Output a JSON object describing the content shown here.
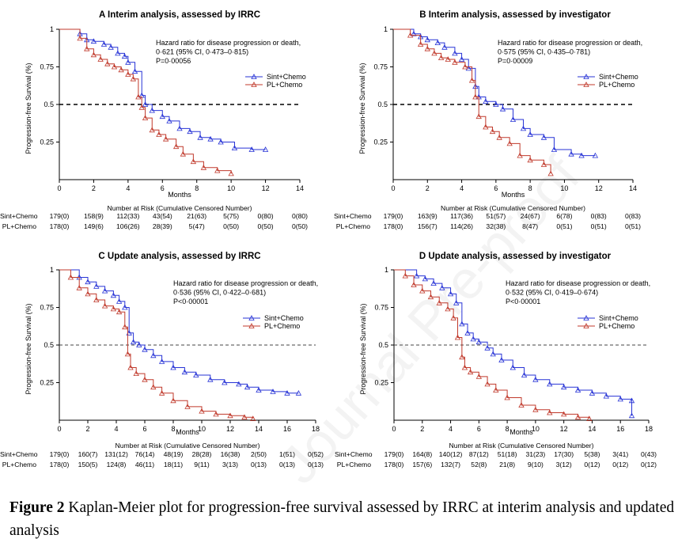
{
  "watermark": "Journal Pre-proof",
  "caption": {
    "label": "Figure 2",
    "text": " Kaplan-Meier plot for progression-free survival assessed by IRRC at interim analysis and updated analysis"
  },
  "colors": {
    "sint": "#2733d6",
    "pl": "#c0392b",
    "ref": "#000000"
  },
  "risk_caption": "Number at Risk (Cumulative Censored Number)",
  "chart_data": [
    {
      "type": "line",
      "title": "A Interim analysis, assessed by IRRC",
      "xlabel": "Months",
      "ylabel": "Progression-free Survival (%)",
      "xlim": [
        0,
        14
      ],
      "ylim": [
        0,
        1
      ],
      "xticks": [
        "0",
        "2",
        "4",
        "6",
        "8",
        "10",
        "12",
        "14"
      ],
      "yticks": [
        "0.25",
        "0.5",
        "0.75",
        "1"
      ],
      "refline": {
        "y": 0.5,
        "style": "bold"
      },
      "annotation": [
        "Hazard ratio for disease progression or death,",
        "0·621 (95% CI, 0·473–0·815)",
        "P=0·00056"
      ],
      "legend": [
        "Sint+Chemo",
        "PL+Chemo"
      ],
      "series": [
        {
          "name": "Sint+Chemo",
          "x": [
            0,
            1.2,
            1.6,
            2.0,
            2.6,
            3.0,
            3.4,
            3.8,
            4.0,
            4.4,
            4.8,
            5.0,
            5.4,
            6.0,
            6.4,
            7.0,
            7.6,
            8.2,
            8.8,
            9.4,
            10.2,
            11.2,
            12.0
          ],
          "y": [
            1,
            0.97,
            0.93,
            0.92,
            0.9,
            0.88,
            0.84,
            0.82,
            0.78,
            0.72,
            0.56,
            0.5,
            0.46,
            0.42,
            0.39,
            0.34,
            0.32,
            0.28,
            0.27,
            0.25,
            0.21,
            0.2,
            0.2
          ]
        },
        {
          "name": "PL+Chemo",
          "x": [
            0,
            1.2,
            1.6,
            2.0,
            2.4,
            2.8,
            3.2,
            3.6,
            4.0,
            4.3,
            4.6,
            4.8,
            5.0,
            5.4,
            5.8,
            6.2,
            6.8,
            7.2,
            7.8,
            8.4,
            9.2,
            10.0
          ],
          "y": [
            1,
            0.94,
            0.87,
            0.83,
            0.8,
            0.77,
            0.75,
            0.73,
            0.7,
            0.67,
            0.55,
            0.48,
            0.41,
            0.33,
            0.3,
            0.27,
            0.22,
            0.17,
            0.12,
            0.08,
            0.06,
            0.04
          ]
        }
      ],
      "risk": {
        "times": [
          "0",
          "2",
          "4",
          "6",
          "8",
          "10",
          "12",
          "14"
        ],
        "rows": [
          {
            "label": "Sint+Chemo",
            "values": [
              "179(0)",
              "158(9)",
              "112(33)",
              "43(54)",
              "21(63)",
              "5(75)",
              "0(80)",
              "0(80)"
            ]
          },
          {
            "label": "PL+Chemo",
            "values": [
              "178(0)",
              "149(6)",
              "106(26)",
              "28(39)",
              "5(47)",
              "0(50)",
              "0(50)",
              "0(50)"
            ]
          }
        ]
      }
    },
    {
      "type": "line",
      "title": "B Interim analysis, assessed by investigator",
      "xlabel": "Months",
      "ylabel": "Progression-free Survival (%)",
      "xlim": [
        0,
        14
      ],
      "ylim": [
        0,
        1
      ],
      "xticks": [
        "0",
        "2",
        "4",
        "6",
        "8",
        "10",
        "12",
        "14"
      ],
      "yticks": [
        "0.25",
        "0.5",
        "0.75",
        "1"
      ],
      "refline": {
        "y": 0.5,
        "style": "bold"
      },
      "annotation": [
        "Hazard ratio for disease progression or death,",
        "0·575 (95% CI, 0·435–0·781)",
        "P=0·00009"
      ],
      "legend": [
        "Sint+Chemo",
        "PL+Chemo"
      ],
      "series": [
        {
          "name": "Sint+Chemo",
          "x": [
            0,
            1.2,
            1.6,
            2.0,
            2.6,
            3.0,
            3.6,
            4.0,
            4.4,
            4.8,
            5.0,
            5.4,
            6.0,
            6.4,
            7.0,
            7.6,
            8.0,
            8.8,
            9.4,
            10.4,
            11.0,
            11.8
          ],
          "y": [
            1,
            0.97,
            0.95,
            0.93,
            0.91,
            0.88,
            0.84,
            0.8,
            0.74,
            0.62,
            0.55,
            0.52,
            0.5,
            0.47,
            0.4,
            0.34,
            0.3,
            0.28,
            0.2,
            0.17,
            0.16,
            0.16
          ]
        },
        {
          "name": "PL+Chemo",
          "x": [
            0,
            1.0,
            1.6,
            2.0,
            2.4,
            2.8,
            3.2,
            3.6,
            4.2,
            4.6,
            4.8,
            5.0,
            5.4,
            5.8,
            6.2,
            6.8,
            7.4,
            8.0,
            8.8,
            9.2
          ],
          "y": [
            1,
            0.96,
            0.9,
            0.87,
            0.84,
            0.81,
            0.8,
            0.78,
            0.75,
            0.66,
            0.55,
            0.42,
            0.35,
            0.32,
            0.28,
            0.24,
            0.16,
            0.13,
            0.1,
            0.04
          ]
        }
      ],
      "risk": {
        "times": [
          "0",
          "2",
          "4",
          "6",
          "8",
          "10",
          "12",
          "14"
        ],
        "rows": [
          {
            "label": "Sint+Chemo",
            "values": [
              "179(0)",
              "163(9)",
              "117(36)",
              "51(57)",
              "24(67)",
              "6(78)",
              "0(83)",
              "0(83)"
            ]
          },
          {
            "label": "PL+Chemo",
            "values": [
              "178(0)",
              "156(7)",
              "114(26)",
              "32(38)",
              "8(47)",
              "0(51)",
              "0(51)",
              "0(51)"
            ]
          }
        ]
      }
    },
    {
      "type": "line",
      "title": "C Update analysis, assessed by IRRC",
      "xlabel": "Months",
      "ylabel": "Progression-free Survival (%)",
      "xlim": [
        0,
        18
      ],
      "ylim": [
        0,
        1
      ],
      "xticks": [
        "0",
        "2",
        "4",
        "6",
        "8",
        "10",
        "12",
        "14",
        "16",
        "18"
      ],
      "yticks": [
        "0.25",
        "0.5",
        "0.75",
        "1"
      ],
      "refline": {
        "y": 0.5,
        "style": "light"
      },
      "annotation": [
        "Hazard ratio for disease progression or death,",
        "0·536 (95% CI, 0·422–0·681)",
        "P<0·00001"
      ],
      "legend": [
        "Sint+Chemo",
        "PL+Chemo"
      ],
      "series": [
        {
          "name": "Sint+Chemo",
          "x": [
            0,
            1.4,
            2.0,
            2.6,
            3.2,
            3.8,
            4.2,
            4.6,
            4.9,
            5.2,
            5.6,
            6.0,
            6.6,
            7.2,
            8.0,
            8.8,
            9.6,
            10.6,
            11.6,
            12.6,
            13.2,
            14.0,
            15.0,
            16.0,
            16.8
          ],
          "y": [
            1,
            0.95,
            0.92,
            0.89,
            0.86,
            0.83,
            0.79,
            0.75,
            0.58,
            0.52,
            0.5,
            0.47,
            0.43,
            0.39,
            0.35,
            0.32,
            0.3,
            0.27,
            0.25,
            0.24,
            0.22,
            0.2,
            0.19,
            0.18,
            0.18
          ]
        },
        {
          "name": "PL+Chemo",
          "x": [
            0,
            0.8,
            1.4,
            2.0,
            2.6,
            3.2,
            3.8,
            4.2,
            4.6,
            4.8,
            5.0,
            5.4,
            6.0,
            6.6,
            7.2,
            8.0,
            9.0,
            10.0,
            11.0,
            12.0,
            13.0,
            13.6
          ],
          "y": [
            1,
            0.95,
            0.88,
            0.84,
            0.8,
            0.76,
            0.74,
            0.72,
            0.62,
            0.44,
            0.35,
            0.31,
            0.27,
            0.22,
            0.18,
            0.13,
            0.09,
            0.06,
            0.04,
            0.03,
            0.02,
            0.01
          ]
        }
      ],
      "risk": {
        "times": [
          "0",
          "2",
          "4",
          "6",
          "8",
          "10",
          "12",
          "14",
          "16",
          "18"
        ],
        "rows": [
          {
            "label": "Sint+Chemo",
            "values": [
              "179(0)",
              "160(7)",
              "131(12)",
              "76(14)",
              "48(19)",
              "28(28)",
              "16(38)",
              "2(50)",
              "1(51)",
              "0(52)"
            ]
          },
          {
            "label": "PL+Chemo",
            "values": [
              "178(0)",
              "150(5)",
              "124(8)",
              "46(11)",
              "18(11)",
              "9(11)",
              "3(13)",
              "0(13)",
              "0(13)",
              "0(13)"
            ]
          }
        ]
      }
    },
    {
      "type": "line",
      "title": "D Update analysis, assessed by investigator",
      "xlabel": "Months",
      "ylabel": "Progression-free Survival (%)",
      "xlim": [
        0,
        18
      ],
      "ylim": [
        0,
        1
      ],
      "xticks": [
        "0",
        "2",
        "4",
        "6",
        "8",
        "10",
        "12",
        "14",
        "16",
        "18"
      ],
      "yticks": [
        "0.25",
        "0.5",
        "0.75",
        "1"
      ],
      "refline": {
        "y": 0.5,
        "style": "light"
      },
      "annotation": [
        "Hazard ratio for disease progression or death,",
        "0·532 (95% CI, 0·419–0·674)",
        "P<0·00001"
      ],
      "legend": [
        "Sint+Chemo",
        "PL+Chemo"
      ],
      "series": [
        {
          "name": "Sint+Chemo",
          "x": [
            0,
            1.6,
            2.2,
            2.8,
            3.4,
            4.0,
            4.4,
            4.8,
            5.2,
            5.6,
            6.0,
            6.6,
            7.0,
            7.6,
            8.4,
            9.2,
            10.0,
            11.0,
            12.0,
            13.0,
            14.0,
            15.0,
            16.0,
            16.8,
            16.8
          ],
          "y": [
            1,
            0.96,
            0.94,
            0.91,
            0.88,
            0.84,
            0.78,
            0.64,
            0.58,
            0.54,
            0.52,
            0.48,
            0.44,
            0.4,
            0.35,
            0.3,
            0.27,
            0.24,
            0.22,
            0.2,
            0.18,
            0.16,
            0.14,
            0.13,
            0.03
          ]
        },
        {
          "name": "PL+Chemo",
          "x": [
            0,
            0.8,
            1.4,
            2.0,
            2.6,
            3.2,
            3.8,
            4.2,
            4.5,
            4.8,
            5.0,
            5.4,
            6.0,
            6.6,
            7.2,
            8.0,
            9.0,
            10.0,
            11.0,
            12.0,
            13.0,
            13.8
          ],
          "y": [
            1,
            0.96,
            0.9,
            0.86,
            0.82,
            0.78,
            0.74,
            0.68,
            0.55,
            0.42,
            0.35,
            0.32,
            0.29,
            0.24,
            0.2,
            0.15,
            0.1,
            0.07,
            0.05,
            0.04,
            0.02,
            0.01
          ]
        }
      ],
      "risk": {
        "times": [
          "0",
          "2",
          "4",
          "6",
          "8",
          "10",
          "12",
          "14",
          "16",
          "18"
        ],
        "rows": [
          {
            "label": "Sint+Chemo",
            "values": [
              "179(0)",
              "164(8)",
              "140(12)",
              "87(12)",
              "51(18)",
              "31(23)",
              "17(30)",
              "5(38)",
              "3(41)",
              "0(43)"
            ]
          },
          {
            "label": "PL+Chemo",
            "values": [
              "178(0)",
              "157(6)",
              "132(7)",
              "52(8)",
              "21(8)",
              "9(10)",
              "3(12)",
              "0(12)",
              "0(12)",
              "0(12)"
            ]
          }
        ]
      }
    }
  ]
}
